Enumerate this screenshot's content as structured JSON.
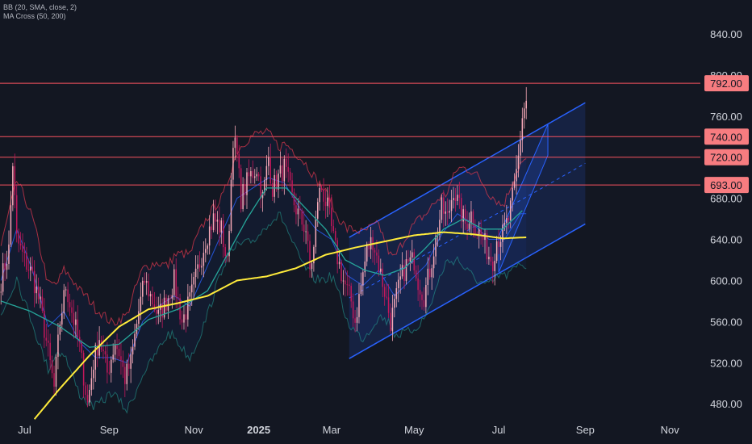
{
  "indicators": [
    "BB (20, SMA, close, 2)",
    "MA Cross (50, 200)"
  ],
  "colors": {
    "background": "#131722",
    "candle_up": "#f7a9b8",
    "candle_down": "#c2185b",
    "bb_band": "#e5394e",
    "bb_basis": "#2962ff",
    "ma50": "#26a69a",
    "ma200": "#ffeb3b",
    "hline": "#f7525f",
    "hline_label_bg": "#f77c80",
    "channel": "#2962ff"
  },
  "chart_data": {
    "type": "candlestick",
    "y_ticks": [
      "840.00",
      "800.00",
      "760.00",
      "720.00",
      "680.00",
      "640.00",
      "600.00",
      "560.00",
      "520.00",
      "480.00"
    ],
    "y_tick_values": [
      840,
      800,
      760,
      720,
      680,
      640,
      600,
      560,
      520,
      480
    ],
    "ylim": [
      466,
      873
    ],
    "x_ticks": [
      {
        "label": "Jul",
        "idx": 12,
        "bold": false
      },
      {
        "label": "Sep",
        "idx": 55,
        "bold": false
      },
      {
        "label": "Nov",
        "idx": 98,
        "bold": false
      },
      {
        "label": "2025",
        "idx": 131,
        "bold": true
      },
      {
        "label": "Mar",
        "idx": 168,
        "bold": false
      },
      {
        "label": "May",
        "idx": 210,
        "bold": false
      },
      {
        "label": "Jul",
        "idx": 253,
        "bold": false
      },
      {
        "label": "Sep",
        "idx": 297,
        "bold": false
      },
      {
        "label": "Nov",
        "idx": 340,
        "bold": false
      }
    ],
    "n_slots": 356,
    "horizontal_levels": [
      {
        "label": "792.00",
        "value": 792
      },
      {
        "label": "740.00",
        "value": 740
      },
      {
        "label": "720.00",
        "value": 720
      },
      {
        "label": "693.00",
        "value": 693
      }
    ],
    "channel": {
      "upper": [
        [
          177,
          642
        ],
        [
          297,
          773
        ]
      ],
      "lower": [
        [
          177,
          524
        ],
        [
          297,
          655
        ]
      ],
      "mid": [
        [
          177,
          583
        ],
        [
          297,
          714
        ]
      ]
    },
    "steep_channel": {
      "upper": [
        [
          253,
          643
        ],
        [
          278,
          752
        ]
      ],
      "lower": [
        [
          253,
          608
        ],
        [
          278,
          722
        ]
      ]
    },
    "close_keypoints": [
      [
        0,
        600
      ],
      [
        4,
        630
      ],
      [
        6,
        715
      ],
      [
        8,
        640
      ],
      [
        12,
        620
      ],
      [
        16,
        605
      ],
      [
        20,
        575
      ],
      [
        24,
        530
      ],
      [
        27,
        495
      ],
      [
        30,
        560
      ],
      [
        33,
        595
      ],
      [
        36,
        570
      ],
      [
        40,
        535
      ],
      [
        44,
        480
      ],
      [
        47,
        520
      ],
      [
        50,
        545
      ],
      [
        54,
        510
      ],
      [
        58,
        540
      ],
      [
        60,
        530
      ],
      [
        63,
        505
      ],
      [
        66,
        520
      ],
      [
        70,
        570
      ],
      [
        73,
        600
      ],
      [
        76,
        585
      ],
      [
        80,
        565
      ],
      [
        84,
        580
      ],
      [
        88,
        600
      ],
      [
        92,
        560
      ],
      [
        96,
        580
      ],
      [
        100,
        610
      ],
      [
        104,
        640
      ],
      [
        108,
        660
      ],
      [
        112,
        650
      ],
      [
        115,
        615
      ],
      [
        118,
        740
      ],
      [
        120,
        720
      ],
      [
        122,
        680
      ],
      [
        126,
        700
      ],
      [
        130,
        710
      ],
      [
        133,
        680
      ],
      [
        136,
        720
      ],
      [
        138,
        690
      ],
      [
        141,
        700
      ],
      [
        144,
        710
      ],
      [
        148,
        680
      ],
      [
        152,
        660
      ],
      [
        155,
        650
      ],
      [
        157,
        610
      ],
      [
        159,
        630
      ],
      [
        161,
        680
      ],
      [
        163,
        690
      ],
      [
        166,
        670
      ],
      [
        170,
        630
      ],
      [
        174,
        600
      ],
      [
        178,
        580
      ],
      [
        180,
        560
      ],
      [
        183,
        595
      ],
      [
        186,
        630
      ],
      [
        189,
        640
      ],
      [
        192,
        615
      ],
      [
        195,
        590
      ],
      [
        198,
        560
      ],
      [
        200,
        575
      ],
      [
        203,
        600
      ],
      [
        206,
        615
      ],
      [
        210,
        620
      ],
      [
        212,
        600
      ],
      [
        215,
        585
      ],
      [
        218,
        610
      ],
      [
        221,
        640
      ],
      [
        224,
        670
      ],
      [
        227,
        660
      ],
      [
        230,
        690
      ],
      [
        233,
        670
      ],
      [
        236,
        655
      ],
      [
        239,
        665
      ],
      [
        242,
        650
      ],
      [
        245,
        640
      ],
      [
        248,
        625
      ],
      [
        250,
        620
      ],
      [
        252,
        640
      ],
      [
        255,
        645
      ],
      [
        258,
        660
      ],
      [
        261,
        690
      ],
      [
        263,
        720
      ],
      [
        265,
        760
      ],
      [
        267,
        775
      ]
    ],
    "ma200_keypoints": [
      [
        17,
        465
      ],
      [
        30,
        495
      ],
      [
        45,
        527
      ],
      [
        60,
        555
      ],
      [
        75,
        572
      ],
      [
        90,
        578
      ],
      [
        105,
        585
      ],
      [
        120,
        600
      ],
      [
        135,
        604
      ],
      [
        150,
        612
      ],
      [
        165,
        625
      ],
      [
        180,
        632
      ],
      [
        195,
        638
      ],
      [
        210,
        644
      ],
      [
        225,
        647
      ],
      [
        240,
        645
      ],
      [
        255,
        641
      ],
      [
        267,
        642
      ]
    ],
    "ma50_keypoints": [
      [
        0,
        580
      ],
      [
        15,
        570
      ],
      [
        30,
        555
      ],
      [
        45,
        535
      ],
      [
        60,
        538
      ],
      [
        75,
        562
      ],
      [
        90,
        572
      ],
      [
        105,
        590
      ],
      [
        115,
        625
      ],
      [
        125,
        660
      ],
      [
        135,
        690
      ],
      [
        145,
        690
      ],
      [
        155,
        670
      ],
      [
        165,
        650
      ],
      [
        175,
        620
      ],
      [
        185,
        610
      ],
      [
        195,
        605
      ],
      [
        205,
        612
      ],
      [
        215,
        630
      ],
      [
        225,
        650
      ],
      [
        235,
        660
      ],
      [
        245,
        650
      ],
      [
        255,
        650
      ],
      [
        265,
        668
      ]
    ],
    "bb_basis_keypoints": [
      [
        0,
        600
      ],
      [
        8,
        650
      ],
      [
        16,
        610
      ],
      [
        24,
        555
      ],
      [
        32,
        570
      ],
      [
        40,
        540
      ],
      [
        48,
        525
      ],
      [
        56,
        525
      ],
      [
        64,
        520
      ],
      [
        72,
        560
      ],
      [
        80,
        575
      ],
      [
        88,
        585
      ],
      [
        96,
        575
      ],
      [
        104,
        610
      ],
      [
        112,
        645
      ],
      [
        120,
        680
      ],
      [
        128,
        690
      ],
      [
        136,
        700
      ],
      [
        144,
        695
      ],
      [
        152,
        670
      ],
      [
        160,
        650
      ],
      [
        168,
        640
      ],
      [
        176,
        605
      ],
      [
        184,
        595
      ],
      [
        192,
        610
      ],
      [
        200,
        585
      ],
      [
        208,
        600
      ],
      [
        216,
        615
      ],
      [
        224,
        645
      ],
      [
        232,
        665
      ],
      [
        240,
        655
      ],
      [
        248,
        640
      ],
      [
        256,
        640
      ],
      [
        264,
        665
      ]
    ]
  }
}
